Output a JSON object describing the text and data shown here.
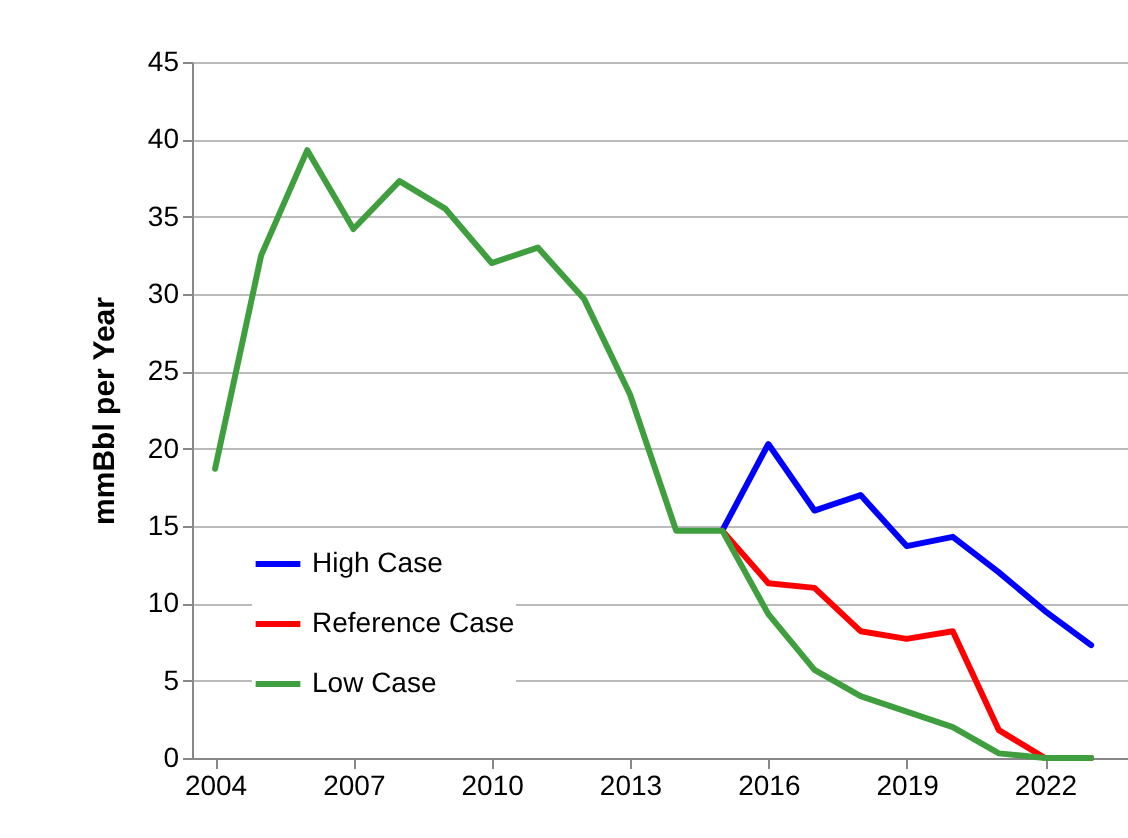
{
  "chart_data": {
    "type": "line",
    "ylabel": "mmBbl per Year",
    "xlim": [
      2003.5,
      2023.8
    ],
    "xticks": [
      2004,
      2007,
      2010,
      2013,
      2016,
      2019,
      2022
    ],
    "ylim": [
      0,
      45
    ],
    "yticks": [
      0,
      5,
      10,
      15,
      20,
      25,
      30,
      35,
      40,
      45
    ],
    "grid": "y",
    "legend": "bottom left",
    "series": [
      {
        "name": "High Case",
        "color": "#0000ff",
        "x": [
          2015,
          2016,
          2017,
          2018,
          2019,
          2020,
          2021,
          2022,
          2023
        ],
        "values": [
          14.7,
          20.3,
          16,
          17,
          13.7,
          14.3,
          12,
          9.5,
          7.3
        ]
      },
      {
        "name": "Reference Case",
        "color": "#ff0000",
        "x": [
          2015,
          2016,
          2017,
          2018,
          2019,
          2020,
          2021,
          2022,
          2023
        ],
        "values": [
          14.7,
          11.3,
          11,
          8.2,
          7.7,
          8.2,
          1.8,
          0,
          0
        ]
      },
      {
        "name": "Low Case",
        "color": "#3f9f3f",
        "x": [
          2004,
          2005,
          2006,
          2007,
          2008,
          2009,
          2010,
          2011,
          2012,
          2013,
          2014,
          2015,
          2016,
          2017,
          2018,
          2019,
          2020,
          2021,
          2022,
          2023
        ],
        "values": [
          18.7,
          32.5,
          39.3,
          34.2,
          37.3,
          35.5,
          32,
          33,
          29.7,
          23.5,
          14.7,
          14.7,
          9.3,
          5.7,
          4,
          3,
          2,
          0.3,
          0,
          0
        ]
      }
    ]
  }
}
